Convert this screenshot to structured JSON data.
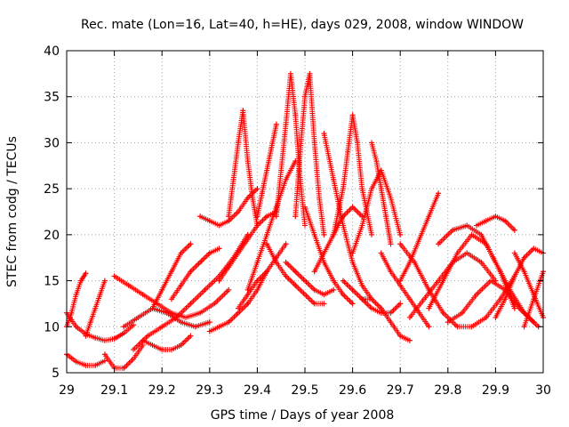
{
  "chart_data": {
    "type": "scatter",
    "title": "Rec. mate (Lon=16, Lat=40, h=HE), days 029, 2008, window WINDOW",
    "xlabel": "GPS time / Days of year 2008",
    "ylabel": "STEC from codg / TECUs",
    "xlim": [
      29,
      30
    ],
    "ylim": [
      5,
      40
    ],
    "xticks": [
      29,
      29.1,
      29.2,
      29.3,
      29.4,
      29.5,
      29.6,
      29.7,
      29.8,
      29.9,
      30
    ],
    "yticks": [
      5,
      10,
      15,
      20,
      25,
      30,
      35,
      40
    ],
    "xtick_labels": [
      "29",
      "29.1",
      "29.2",
      "29.3",
      "29.4",
      "29.5",
      "29.6",
      "29.7",
      "29.8",
      "29.9",
      "30"
    ],
    "ytick_labels": [
      "5",
      "10",
      "15",
      "20",
      "25",
      "30",
      "35",
      "40"
    ],
    "grid": true,
    "marker": "+",
    "color": "#ff0000",
    "series": [
      {
        "x": [
          29.0,
          29.02,
          29.04,
          29.06,
          29.08,
          29.1,
          29.12,
          29.14
        ],
        "y": [
          11.5,
          10.0,
          9.2,
          8.8,
          8.5,
          8.7,
          9.3,
          10.2
        ]
      },
      {
        "x": [
          29.0,
          29.02,
          29.04,
          29.06,
          29.08
        ],
        "y": [
          7.0,
          6.2,
          5.8,
          5.8,
          6.3
        ]
      },
      {
        "x": [
          29.0,
          29.01,
          29.02,
          29.03,
          29.04
        ],
        "y": [
          10.0,
          11.5,
          13.5,
          15.0,
          15.8
        ]
      },
      {
        "x": [
          29.04,
          29.05,
          29.06,
          29.07,
          29.08
        ],
        "y": [
          9.0,
          10.5,
          12.0,
          13.5,
          15.0
        ]
      },
      {
        "x": [
          29.08,
          29.1,
          29.12,
          29.14,
          29.16
        ],
        "y": [
          7.0,
          5.5,
          5.5,
          6.5,
          8.0
        ]
      },
      {
        "x": [
          29.1,
          29.13,
          29.16,
          29.19,
          29.22,
          29.25,
          29.28,
          29.31,
          29.34
        ],
        "y": [
          15.5,
          14.5,
          13.5,
          12.5,
          11.5,
          11.0,
          11.5,
          12.5,
          14.0
        ]
      },
      {
        "x": [
          29.12,
          29.15,
          29.18,
          29.21,
          29.24,
          29.27,
          29.3
        ],
        "y": [
          10.0,
          11.0,
          12.0,
          11.5,
          10.5,
          10.0,
          10.5
        ]
      },
      {
        "x": [
          29.14,
          29.17,
          29.2,
          29.23,
          29.26,
          29.29,
          29.32,
          29.35,
          29.38
        ],
        "y": [
          7.5,
          9.0,
          10.0,
          11.0,
          12.5,
          14.0,
          15.5,
          17.5,
          20.0
        ]
      },
      {
        "x": [
          29.16,
          29.18,
          29.2,
          29.22,
          29.24,
          29.26
        ],
        "y": [
          8.5,
          8.0,
          7.5,
          7.5,
          8.0,
          9.0
        ]
      },
      {
        "x": [
          29.18,
          29.2,
          29.22,
          29.24,
          29.26
        ],
        "y": [
          12.0,
          14.0,
          16.0,
          18.0,
          19.0
        ]
      },
      {
        "x": [
          29.22,
          29.24,
          29.26,
          29.28,
          29.3,
          29.32
        ],
        "y": [
          13.0,
          14.5,
          16.0,
          17.0,
          18.0,
          18.5
        ]
      },
      {
        "x": [
          29.28,
          29.3,
          29.32,
          29.34,
          29.36,
          29.38,
          29.4
        ],
        "y": [
          22.0,
          21.5,
          21.0,
          21.5,
          22.5,
          24.0,
          25.0
        ]
      },
      {
        "x": [
          29.3,
          29.32,
          29.34,
          29.36,
          29.38,
          29.4,
          29.42
        ],
        "y": [
          9.5,
          10.0,
          10.5,
          11.5,
          12.5,
          14.0,
          16.0
        ]
      },
      {
        "x": [
          29.32,
          29.34,
          29.36,
          29.38,
          29.4,
          29.42,
          29.44
        ],
        "y": [
          15.0,
          16.5,
          18.0,
          19.5,
          21.0,
          22.0,
          22.5
        ]
      },
      {
        "x": [
          29.34,
          29.35,
          29.36,
          29.37,
          29.38,
          29.39,
          29.4
        ],
        "y": [
          22.0,
          26.0,
          30.0,
          33.5,
          28.0,
          24.0,
          21.0
        ]
      },
      {
        "x": [
          29.36,
          29.38,
          29.4,
          29.42,
          29.44,
          29.46
        ],
        "y": [
          12.0,
          13.5,
          15.0,
          16.0,
          17.5,
          19.0
        ]
      },
      {
        "x": [
          29.38,
          29.4,
          29.42,
          29.44,
          29.46,
          29.48
        ],
        "y": [
          14.0,
          17.0,
          20.0,
          23.0,
          26.0,
          28.0
        ]
      },
      {
        "x": [
          29.4,
          29.41,
          29.42,
          29.43,
          29.44
        ],
        "y": [
          22.0,
          24.5,
          27.0,
          29.5,
          32.0
        ]
      },
      {
        "x": [
          29.42,
          29.44,
          29.46,
          29.48,
          29.5,
          29.52,
          29.54
        ],
        "y": [
          19.0,
          17.0,
          15.5,
          14.5,
          13.5,
          12.5,
          12.5
        ]
      },
      {
        "x": [
          29.44,
          29.45,
          29.46,
          29.47,
          29.48,
          29.49,
          29.5
        ],
        "y": [
          22.0,
          27.0,
          32.0,
          37.5,
          33.0,
          26.0,
          21.0
        ]
      },
      {
        "x": [
          29.46,
          29.48,
          29.5,
          29.52,
          29.54,
          29.56
        ],
        "y": [
          17.0,
          16.0,
          15.0,
          14.0,
          13.5,
          14.0
        ]
      },
      {
        "x": [
          29.48,
          29.49,
          29.5,
          29.51,
          29.52,
          29.53,
          29.54
        ],
        "y": [
          22.0,
          29.0,
          35.0,
          37.5,
          30.0,
          24.0,
          20.0
        ]
      },
      {
        "x": [
          29.5,
          29.52,
          29.54,
          29.56,
          29.58,
          29.6
        ],
        "y": [
          23.0,
          20.0,
          17.0,
          15.0,
          13.5,
          12.5
        ]
      },
      {
        "x": [
          29.52,
          29.54,
          29.56,
          29.58,
          29.6,
          29.62
        ],
        "y": [
          16.0,
          18.0,
          20.0,
          22.0,
          23.0,
          22.0
        ]
      },
      {
        "x": [
          29.54,
          29.56,
          29.58,
          29.6,
          29.62,
          29.64
        ],
        "y": [
          31.0,
          26.0,
          21.0,
          17.0,
          14.5,
          13.0
        ]
      },
      {
        "x": [
          29.56,
          29.58,
          29.59,
          29.6,
          29.61,
          29.62,
          29.64
        ],
        "y": [
          20.0,
          25.0,
          29.0,
          33.0,
          30.0,
          25.0,
          20.0
        ]
      },
      {
        "x": [
          29.58,
          29.6,
          29.62,
          29.64,
          29.66,
          29.68,
          29.7
        ],
        "y": [
          15.0,
          14.0,
          13.0,
          12.0,
          11.5,
          11.5,
          12.5
        ]
      },
      {
        "x": [
          29.6,
          29.62,
          29.64,
          29.66,
          29.68,
          29.7
        ],
        "y": [
          18.0,
          21.0,
          25.0,
          27.0,
          24.0,
          20.0
        ]
      },
      {
        "x": [
          29.62,
          29.64,
          29.66,
          29.68,
          29.7,
          29.72
        ],
        "y": [
          13.0,
          13.0,
          12.0,
          10.5,
          9.0,
          8.5
        ]
      },
      {
        "x": [
          29.64,
          29.65,
          29.66,
          29.67,
          29.68
        ],
        "y": [
          30.0,
          28.0,
          25.0,
          22.0,
          19.0
        ]
      },
      {
        "x": [
          29.66,
          29.68,
          29.7,
          29.72,
          29.74,
          29.76
        ],
        "y": [
          18.0,
          16.0,
          14.5,
          13.0,
          11.5,
          10.0
        ]
      },
      {
        "x": [
          29.7,
          29.72,
          29.74,
          29.76,
          29.78
        ],
        "y": [
          15.0,
          17.0,
          19.5,
          22.0,
          24.5
        ]
      },
      {
        "x": [
          29.7,
          29.73,
          29.76,
          29.79,
          29.82,
          29.85,
          29.88,
          29.91,
          29.94
        ],
        "y": [
          19.0,
          17.0,
          14.0,
          11.5,
          10.0,
          10.0,
          11.0,
          13.0,
          15.5
        ]
      },
      {
        "x": [
          29.72,
          29.75,
          29.78,
          29.81,
          29.84,
          29.87,
          29.9
        ],
        "y": [
          11.0,
          13.0,
          15.0,
          17.0,
          18.0,
          17.0,
          15.0
        ]
      },
      {
        "x": [
          29.76,
          29.79,
          29.82,
          29.85,
          29.88,
          29.91,
          29.94
        ],
        "y": [
          12.0,
          15.0,
          18.0,
          20.0,
          19.0,
          16.0,
          12.0
        ]
      },
      {
        "x": [
          29.78,
          29.81,
          29.84,
          29.87,
          29.9,
          29.93,
          29.96,
          29.99
        ],
        "y": [
          19.0,
          20.5,
          21.0,
          20.0,
          17.0,
          14.0,
          11.5,
          10.0
        ]
      },
      {
        "x": [
          29.8,
          29.83,
          29.86,
          29.89,
          29.92,
          29.95,
          29.98
        ],
        "y": [
          10.5,
          11.5,
          13.5,
          15.0,
          14.0,
          12.0,
          10.5
        ]
      },
      {
        "x": [
          29.86,
          29.88,
          29.9,
          29.92,
          29.94
        ],
        "y": [
          21.0,
          21.5,
          22.0,
          21.5,
          20.5
        ]
      },
      {
        "x": [
          29.9,
          29.92,
          29.94,
          29.96,
          29.98,
          30.0
        ],
        "y": [
          11.0,
          13.0,
          15.5,
          17.5,
          18.5,
          18.0
        ]
      },
      {
        "x": [
          29.94,
          29.96,
          29.98,
          30.0
        ],
        "y": [
          18.0,
          16.0,
          13.5,
          11.0
        ]
      },
      {
        "x": [
          29.96,
          29.98,
          30.0
        ],
        "y": [
          10.0,
          13.0,
          16.0
        ]
      }
    ]
  }
}
